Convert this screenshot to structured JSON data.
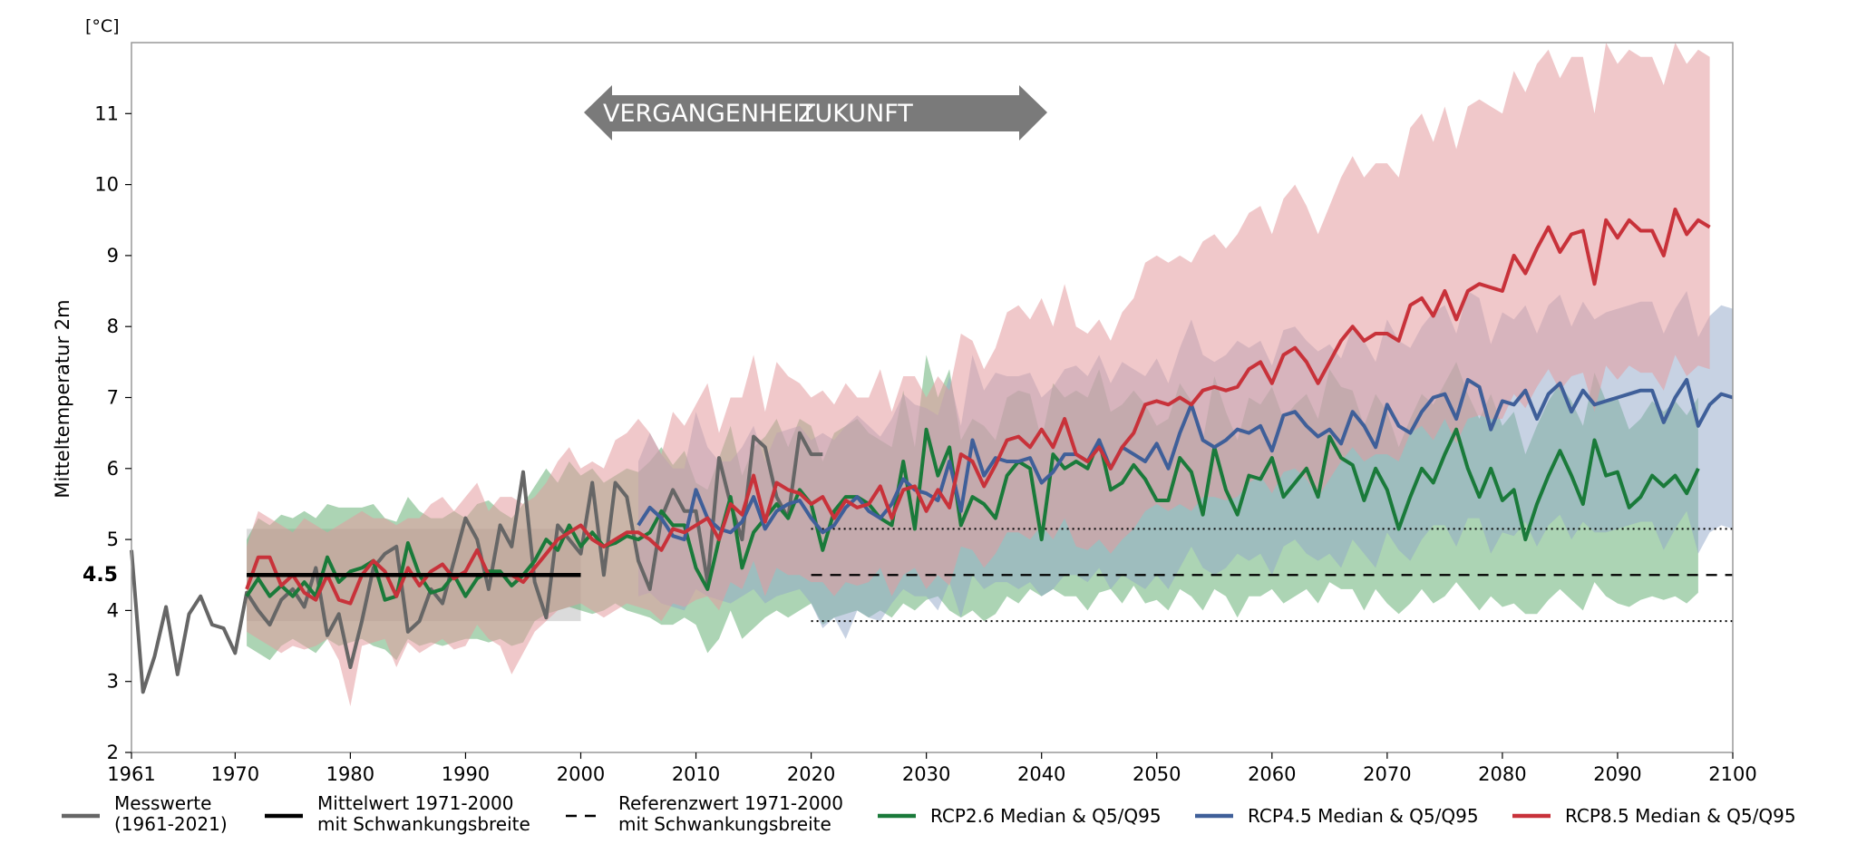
{
  "chart_data": {
    "type": "line",
    "unit_label": "[°C]",
    "ylabel": "Mitteltemperatur 2m",
    "xlim": [
      1961,
      2100
    ],
    "ylim": [
      2,
      12
    ],
    "x_ticks": [
      1961,
      1970,
      1980,
      1990,
      2000,
      2010,
      2020,
      2030,
      2040,
      2050,
      2060,
      2070,
      2080,
      2090,
      2100
    ],
    "y_ticks": [
      2,
      3,
      4,
      5,
      6,
      7,
      8,
      9,
      10,
      11
    ],
    "reference_value_label": "4.5",
    "reference_value": 4.5,
    "arrow_left_label": "VERGANGENHEIT",
    "arrow_right_label": "ZUKUNFT",
    "observed": {
      "name": "Messwerte (1961-2021)",
      "color": "#666666",
      "x_start": 1961,
      "values": [
        4.85,
        2.85,
        3.35,
        4.05,
        3.1,
        3.95,
        4.2,
        3.8,
        3.75,
        3.4,
        4.25,
        4.0,
        3.8,
        4.15,
        4.3,
        4.05,
        4.6,
        3.65,
        3.95,
        3.2,
        3.85,
        4.6,
        4.8,
        4.9,
        3.7,
        3.85,
        4.3,
        4.1,
        4.7,
        5.3,
        5.0,
        4.3,
        5.2,
        4.9,
        5.95,
        4.4,
        3.9,
        5.2,
        5.0,
        4.8,
        5.8,
        4.5,
        5.8,
        5.6,
        4.7,
        4.3,
        5.3,
        5.7,
        5.4,
        5.4,
        4.4,
        6.15,
        5.5,
        5.0,
        6.45,
        6.3,
        5.6,
        5.3,
        6.5,
        6.2,
        6.2
      ]
    },
    "baseline_mean": {
      "name": "Mittelwert 1971-2000 mit Schwankungsbreite",
      "color": "#000000",
      "x": [
        1971,
        2000
      ],
      "value": 4.5,
      "band": [
        3.85,
        5.15
      ]
    },
    "reference": {
      "name": "Referenzwert 1971-2000 mit Schwankungsbreite",
      "color": "#000000",
      "x": [
        2020,
        2100
      ],
      "value": 4.5,
      "band": [
        3.85,
        5.15
      ]
    },
    "series": [
      {
        "name": "RCP2.6 Median & Q5/Q95",
        "color": "#1a7a3a",
        "band_color": "#5aa96a",
        "x_start": 1971,
        "median": [
          4.2,
          4.45,
          4.2,
          4.35,
          4.2,
          4.4,
          4.2,
          4.75,
          4.4,
          4.55,
          4.6,
          4.7,
          4.15,
          4.2,
          4.95,
          4.5,
          4.25,
          4.3,
          4.5,
          4.2,
          4.45,
          4.55,
          4.55,
          4.35,
          4.5,
          4.7,
          5.0,
          4.85,
          5.2,
          4.9,
          5.1,
          4.9,
          4.95,
          5.05,
          5.0,
          5.1,
          5.4,
          5.2,
          5.2,
          4.6,
          4.3,
          5.0,
          5.6,
          4.6,
          5.1,
          5.3,
          5.5,
          5.3,
          5.7,
          5.5,
          4.85,
          5.4,
          5.6,
          5.6,
          5.5,
          5.3,
          5.2,
          6.1,
          5.15,
          6.55,
          5.9,
          6.3,
          5.2,
          5.6,
          5.5,
          5.3,
          5.9,
          6.1,
          6.0,
          5.0,
          6.2,
          6.0,
          6.1,
          6.0,
          6.4,
          5.7,
          5.8,
          6.05,
          5.85,
          5.55,
          5.55,
          6.15,
          5.95,
          5.35,
          6.3,
          5.7,
          5.35,
          5.9,
          5.85,
          6.15,
          5.6,
          5.8,
          6.0,
          5.6,
          6.45,
          6.15,
          6.05,
          5.55,
          6.0,
          5.7,
          5.15,
          5.6,
          6.0,
          5.8,
          6.2,
          6.55,
          6.0,
          5.6,
          6.0,
          5.55,
          5.7,
          5.0,
          5.5,
          5.9,
          6.25,
          5.9,
          5.5,
          6.4,
          5.9,
          5.95,
          5.45,
          5.6,
          5.9,
          5.75,
          5.9,
          5.65,
          6.0
        ],
        "q5": [
          3.5,
          3.4,
          3.3,
          3.5,
          3.6,
          3.5,
          3.4,
          3.6,
          3.5,
          3.55,
          3.6,
          3.5,
          3.45,
          3.3,
          3.6,
          3.5,
          3.55,
          3.5,
          3.55,
          3.6,
          3.6,
          3.55,
          3.6,
          3.5,
          3.55,
          3.85,
          3.95,
          4.0,
          4.05,
          4.0,
          3.95,
          4.0,
          4.1,
          4.0,
          3.95,
          3.9,
          3.8,
          3.8,
          3.9,
          3.8,
          3.4,
          3.6,
          4.0,
          3.6,
          3.75,
          3.9,
          4.0,
          3.9,
          4.0,
          4.1,
          3.8,
          3.9,
          3.95,
          4.0,
          3.9,
          4.0,
          3.9,
          4.1,
          4.0,
          4.15,
          4.2,
          4.0,
          3.9,
          4.0,
          3.85,
          3.95,
          4.2,
          4.1,
          4.3,
          4.2,
          4.3,
          4.2,
          4.2,
          4.0,
          4.25,
          4.3,
          4.1,
          4.35,
          4.1,
          4.15,
          4.0,
          4.3,
          4.2,
          4.0,
          4.3,
          4.2,
          3.9,
          4.2,
          4.2,
          4.3,
          4.1,
          4.2,
          4.3,
          4.1,
          4.4,
          4.3,
          4.3,
          4.0,
          4.3,
          4.1,
          3.95,
          4.1,
          4.3,
          4.1,
          4.2,
          4.4,
          4.2,
          4.0,
          4.2,
          4.05,
          4.1,
          3.95,
          3.95,
          4.15,
          4.3,
          4.15,
          4.0,
          4.4,
          4.2,
          4.1,
          4.05,
          4.15,
          4.2,
          4.15,
          4.2,
          4.1,
          4.25
        ],
        "q95": [
          5.0,
          5.3,
          5.2,
          5.35,
          5.3,
          5.4,
          5.3,
          5.5,
          5.45,
          5.45,
          5.45,
          5.5,
          5.3,
          5.25,
          5.6,
          5.4,
          5.3,
          5.3,
          5.4,
          5.3,
          5.5,
          5.55,
          5.4,
          5.3,
          5.5,
          5.75,
          6.0,
          5.8,
          6.1,
          5.9,
          6.0,
          5.8,
          5.9,
          6.0,
          5.95,
          6.1,
          6.3,
          6.05,
          6.25,
          5.8,
          5.7,
          6.15,
          6.6,
          5.9,
          6.3,
          6.45,
          6.7,
          6.3,
          6.7,
          6.6,
          6.1,
          6.5,
          6.6,
          6.7,
          6.5,
          6.4,
          6.3,
          7.1,
          6.3,
          7.6,
          7.0,
          7.4,
          6.4,
          6.7,
          6.6,
          6.4,
          7.0,
          7.1,
          7.05,
          6.4,
          7.2,
          7.0,
          7.1,
          7.0,
          7.4,
          6.8,
          6.9,
          7.1,
          6.9,
          6.6,
          6.7,
          7.2,
          6.95,
          6.4,
          7.3,
          6.8,
          6.4,
          7.0,
          6.9,
          7.15,
          6.7,
          6.9,
          7.05,
          6.7,
          7.4,
          7.15,
          7.1,
          6.6,
          7.05,
          6.8,
          6.3,
          6.7,
          7.05,
          6.9,
          7.2,
          7.5,
          7.05,
          6.7,
          7.05,
          6.6,
          6.8,
          6.2,
          6.6,
          6.95,
          7.2,
          6.95,
          6.6,
          7.35,
          6.95,
          7.0,
          6.55,
          6.7,
          6.95,
          6.8,
          6.95,
          6.75,
          7.0
        ]
      },
      {
        "name": "RCP4.5 Median & Q5/Q95",
        "color": "#3f5f99",
        "band_color": "#8fa6c8",
        "x_start": 2005,
        "median": [
          5.2,
          5.45,
          5.3,
          5.05,
          5.0,
          5.7,
          5.3,
          5.15,
          5.1,
          5.25,
          5.6,
          5.15,
          5.4,
          5.5,
          5.55,
          5.3,
          5.1,
          5.2,
          5.45,
          5.6,
          5.4,
          5.3,
          5.5,
          5.85,
          5.7,
          5.65,
          5.55,
          6.1,
          5.4,
          6.4,
          5.9,
          6.15,
          6.1,
          6.1,
          6.15,
          5.8,
          5.95,
          6.2,
          6.2,
          6.1,
          6.4,
          6.0,
          6.3,
          6.2,
          6.1,
          6.35,
          6.0,
          6.5,
          6.9,
          6.4,
          6.3,
          6.4,
          6.55,
          6.5,
          6.6,
          6.25,
          6.75,
          6.8,
          6.6,
          6.45,
          6.55,
          6.35,
          6.8,
          6.6,
          6.3,
          6.9,
          6.6,
          6.5,
          6.8,
          7.0,
          7.05,
          6.7,
          7.25,
          7.15,
          6.55,
          6.95,
          6.9,
          7.1,
          6.7,
          7.05,
          7.2,
          6.8,
          7.1,
          6.9,
          6.95,
          7.0,
          7.05,
          7.1,
          7.1,
          6.65,
          7.0,
          7.25,
          6.6,
          6.9,
          7.05,
          7.0
        ],
        "q5": [
          4.2,
          4.25,
          4.1,
          4.05,
          4.0,
          4.3,
          4.2,
          4.15,
          4.1,
          4.2,
          4.3,
          4.1,
          4.2,
          4.25,
          4.3,
          4.1,
          3.75,
          3.9,
          3.6,
          4.0,
          3.9,
          3.85,
          4.1,
          4.3,
          4.2,
          4.2,
          4.0,
          4.4,
          3.9,
          4.5,
          4.3,
          4.4,
          4.4,
          4.3,
          4.4,
          4.2,
          4.3,
          4.5,
          4.5,
          4.4,
          4.6,
          4.3,
          4.5,
          4.4,
          4.3,
          4.5,
          4.3,
          4.6,
          4.9,
          4.6,
          4.5,
          4.6,
          4.8,
          4.7,
          4.8,
          4.5,
          4.9,
          5.0,
          4.8,
          4.7,
          4.8,
          4.6,
          5.0,
          4.8,
          4.6,
          5.1,
          4.85,
          4.7,
          5.0,
          5.2,
          5.2,
          4.9,
          5.3,
          5.3,
          4.8,
          5.1,
          5.05,
          5.25,
          4.9,
          5.2,
          5.35,
          5.0,
          5.25,
          5.1,
          5.1,
          5.15,
          5.2,
          5.25,
          5.25,
          4.85,
          5.15,
          5.4,
          4.8,
          5.1,
          5.2,
          5.15
        ],
        "q95": [
          6.1,
          6.5,
          6.2,
          6.0,
          6.0,
          6.8,
          6.3,
          6.1,
          6.1,
          6.3,
          6.6,
          6.1,
          6.5,
          6.55,
          6.6,
          6.4,
          6.5,
          6.4,
          6.6,
          6.75,
          6.6,
          6.45,
          6.7,
          7.05,
          6.9,
          6.85,
          6.75,
          7.3,
          6.6,
          7.6,
          7.1,
          7.35,
          7.3,
          7.3,
          7.35,
          7.0,
          7.15,
          7.4,
          7.45,
          7.3,
          7.6,
          7.2,
          7.5,
          7.4,
          7.3,
          7.55,
          7.2,
          7.7,
          8.1,
          7.6,
          7.5,
          7.6,
          7.8,
          7.7,
          7.8,
          7.45,
          7.95,
          8.0,
          7.8,
          7.65,
          7.75,
          7.55,
          8.0,
          7.8,
          7.5,
          8.1,
          7.8,
          7.7,
          8.0,
          8.2,
          8.3,
          7.9,
          8.5,
          8.4,
          7.75,
          8.2,
          8.1,
          8.3,
          7.9,
          8.3,
          8.45,
          8.0,
          8.35,
          8.1,
          8.2,
          8.25,
          8.3,
          8.35,
          8.35,
          7.9,
          8.25,
          8.5,
          7.85,
          8.15,
          8.3,
          8.25
        ]
      },
      {
        "name": "RCP8.5 Median & Q5/Q95",
        "color": "#c8323a",
        "band_color": "#e39a9e",
        "x_start": 1971,
        "median": [
          4.3,
          4.75,
          4.75,
          4.35,
          4.5,
          4.25,
          4.15,
          4.5,
          4.15,
          4.1,
          4.5,
          4.7,
          4.55,
          4.2,
          4.6,
          4.35,
          4.55,
          4.65,
          4.45,
          4.55,
          4.85,
          4.5,
          4.5,
          4.5,
          4.4,
          4.6,
          4.8,
          5.0,
          5.1,
          5.2,
          5.0,
          4.9,
          5.0,
          5.1,
          5.1,
          5.0,
          4.85,
          5.15,
          5.1,
          5.2,
          5.3,
          5.0,
          5.5,
          5.35,
          5.9,
          5.25,
          5.8,
          5.7,
          5.65,
          5.5,
          5.6,
          5.3,
          5.55,
          5.45,
          5.5,
          5.75,
          5.3,
          5.7,
          5.75,
          5.4,
          5.7,
          5.45,
          6.2,
          6.1,
          5.75,
          6.05,
          6.4,
          6.45,
          6.3,
          6.55,
          6.3,
          6.7,
          6.2,
          6.1,
          6.3,
          6.0,
          6.3,
          6.5,
          6.9,
          6.95,
          6.9,
          7.0,
          6.9,
          7.1,
          7.15,
          7.1,
          7.15,
          7.4,
          7.5,
          7.2,
          7.6,
          7.7,
          7.5,
          7.2,
          7.5,
          7.8,
          8.0,
          7.8,
          7.9,
          7.9,
          7.8,
          8.3,
          8.4,
          8.15,
          8.5,
          8.1,
          8.5,
          8.6,
          8.55,
          8.5,
          9.0,
          8.75,
          9.1,
          9.4,
          9.05,
          9.3,
          9.35,
          8.6,
          9.5,
          9.25,
          9.5,
          9.35,
          9.35,
          9.0,
          9.65,
          9.3,
          9.5,
          9.4
        ],
        "q5": [
          3.7,
          3.6,
          3.5,
          3.4,
          3.5,
          3.45,
          3.5,
          3.6,
          3.3,
          2.65,
          3.5,
          3.55,
          3.6,
          3.2,
          3.55,
          3.4,
          3.5,
          3.6,
          3.45,
          3.5,
          3.8,
          3.6,
          3.5,
          3.1,
          3.4,
          3.7,
          3.85,
          4.0,
          4.05,
          4.1,
          4.0,
          3.9,
          4.0,
          4.1,
          4.05,
          4.0,
          3.85,
          4.1,
          4.05,
          4.15,
          4.2,
          4.0,
          4.4,
          4.3,
          4.7,
          4.2,
          4.6,
          4.5,
          4.5,
          4.4,
          4.4,
          4.2,
          4.4,
          4.35,
          4.4,
          4.6,
          4.2,
          4.5,
          4.6,
          4.3,
          4.5,
          4.35,
          4.9,
          4.85,
          4.6,
          4.8,
          5.1,
          5.1,
          5.0,
          5.2,
          5.0,
          5.3,
          4.9,
          4.85,
          5.0,
          4.8,
          5.0,
          5.15,
          5.4,
          5.5,
          5.4,
          5.5,
          5.4,
          5.6,
          5.6,
          5.55,
          5.6,
          5.8,
          5.9,
          5.65,
          5.95,
          6.0,
          5.85,
          5.6,
          5.85,
          6.1,
          6.3,
          6.1,
          6.2,
          6.2,
          6.1,
          6.5,
          6.6,
          6.4,
          6.7,
          6.35,
          6.7,
          6.75,
          6.7,
          6.7,
          7.05,
          6.85,
          7.15,
          7.4,
          7.1,
          7.3,
          7.35,
          6.8,
          7.45,
          7.25,
          7.45,
          7.35,
          7.35,
          7.1,
          7.6,
          7.3,
          7.45,
          7.4
        ],
        "q95": [
          4.9,
          5.4,
          5.3,
          5.2,
          5.1,
          5.3,
          5.2,
          5.1,
          5.2,
          5.3,
          5.4,
          5.3,
          5.3,
          5.2,
          5.3,
          5.3,
          5.5,
          5.6,
          5.4,
          5.6,
          5.8,
          5.4,
          5.6,
          5.6,
          5.5,
          5.6,
          5.8,
          6.1,
          6.3,
          6.0,
          6.1,
          6.0,
          6.4,
          6.5,
          6.7,
          6.5,
          6.2,
          6.8,
          6.6,
          6.9,
          7.2,
          6.5,
          7.0,
          7.0,
          7.6,
          6.8,
          7.5,
          7.3,
          7.2,
          7.0,
          7.1,
          6.9,
          7.2,
          7.0,
          7.0,
          7.4,
          6.8,
          7.3,
          7.3,
          7.0,
          7.3,
          7.1,
          7.9,
          7.8,
          7.4,
          7.7,
          8.2,
          8.3,
          8.1,
          8.4,
          8.0,
          8.6,
          8.0,
          7.9,
          8.1,
          7.8,
          8.2,
          8.4,
          8.9,
          9.0,
          8.9,
          9.0,
          8.9,
          9.2,
          9.3,
          9.1,
          9.3,
          9.6,
          9.7,
          9.3,
          9.8,
          10.0,
          9.7,
          9.3,
          9.7,
          10.1,
          10.4,
          10.1,
          10.3,
          10.3,
          10.1,
          10.8,
          11.0,
          10.6,
          11.1,
          10.5,
          11.1,
          11.2,
          11.1,
          11.0,
          11.6,
          11.3,
          11.7,
          11.9,
          11.5,
          11.8,
          11.8,
          11.0,
          12.0,
          11.7,
          11.9,
          11.8,
          11.8,
          11.4,
          12.0,
          11.7,
          11.9,
          11.8
        ]
      }
    ],
    "legend": [
      {
        "key": "obs",
        "style": "solid",
        "color": "#666666",
        "label1": "Messwerte",
        "label2": "(1961-2021)"
      },
      {
        "key": "mean",
        "style": "solid",
        "color": "#000000",
        "label1": "Mittelwert 1971-2000",
        "label2": "mit Schwankungsbreite"
      },
      {
        "key": "ref",
        "style": "dashed",
        "color": "#000000",
        "label1": "Referenzwert 1971-2000",
        "label2": "mit Schwankungsbreite"
      },
      {
        "key": "rcp26",
        "style": "solid",
        "color": "#1a7a3a",
        "label1": "RCP2.6 Median & Q5/Q95",
        "label2": ""
      },
      {
        "key": "rcp45",
        "style": "solid",
        "color": "#3f5f99",
        "label1": "RCP4.5 Median & Q5/Q95",
        "label2": ""
      },
      {
        "key": "rcp85",
        "style": "solid",
        "color": "#c8323a",
        "label1": "RCP8.5 Median & Q5/Q95",
        "label2": ""
      }
    ],
    "grid": false,
    "legend_position": "bottom"
  }
}
